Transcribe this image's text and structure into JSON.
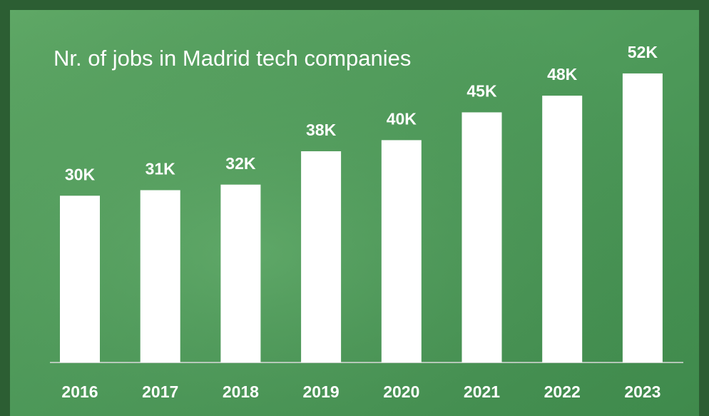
{
  "chart_data": {
    "type": "bar",
    "title": "Nr. of jobs in Madrid tech companies",
    "categories": [
      "2016",
      "2017",
      "2018",
      "2019",
      "2020",
      "2021",
      "2022",
      "2023"
    ],
    "values": [
      30,
      31,
      32,
      38,
      40,
      45,
      48,
      52
    ],
    "value_labels": [
      "30K",
      "31K",
      "32K",
      "38K",
      "40K",
      "45K",
      "48K",
      "52K"
    ],
    "color": "#ffffff"
  }
}
